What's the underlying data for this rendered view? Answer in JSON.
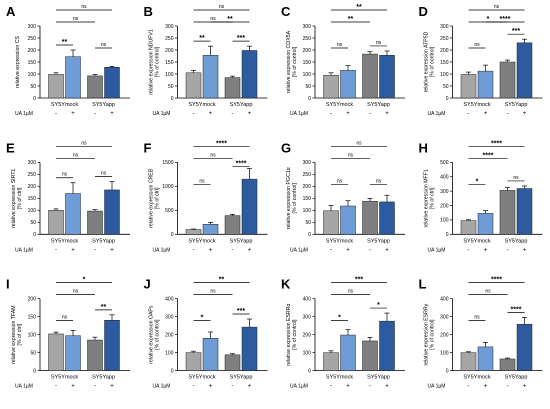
{
  "colors": {
    "mock": "#a6a6a6",
    "mock_ua": "#6f9bd6",
    "app": "#7f7f7f",
    "app_ua": "#2e5b9f",
    "axis": "#000000"
  },
  "shared": {
    "groups": [
      "SY5Ymock",
      "SY5Yapp"
    ],
    "ua_label": "UA 1µM",
    "ua_signs": [
      "-",
      "+",
      "-",
      "+"
    ]
  },
  "chart_data": [
    {
      "type": "bar",
      "letter": "A",
      "ylabel": "relative expression CS",
      "ylabel2": "",
      "ylim": [
        0,
        300
      ],
      "yticks": [
        0,
        50,
        100,
        150,
        200,
        250,
        300
      ],
      "ytick_labels": [
        "0",
        "50",
        "100",
        "150",
        "200",
        "250",
        "300"
      ],
      "series": [
        {
          "name": "",
          "values": [
            98,
            172,
            92,
            128
          ],
          "errors": [
            7,
            28,
            6,
            4
          ]
        }
      ],
      "sig": [
        {
          "a": 0,
          "b": 1,
          "label": "**"
        },
        {
          "a": 2,
          "b": 3,
          "label": "ns"
        },
        {
          "a": 0,
          "b": 2,
          "label": "ns"
        },
        {
          "a": 0,
          "b": 3,
          "label": "ns"
        }
      ]
    },
    {
      "type": "bar",
      "letter": "B",
      "ylabel": "relative expression NDUFV1",
      "ylabel2": "[% of control]",
      "ylim": [
        0,
        300
      ],
      "yticks": [
        0,
        50,
        100,
        150,
        200,
        250,
        300
      ],
      "ytick_labels": [
        "0",
        "50",
        "100",
        "150",
        "200",
        "250",
        "300"
      ],
      "series": [
        {
          "name": "",
          "values": [
            105,
            178,
            85,
            198
          ],
          "errors": [
            10,
            38,
            6,
            18
          ]
        }
      ],
      "sig": [
        {
          "a": 0,
          "b": 1,
          "label": "**"
        },
        {
          "a": 2,
          "b": 3,
          "label": "***"
        },
        {
          "a": 0,
          "b": 2,
          "label": "ns"
        },
        {
          "a": 0,
          "b": 3,
          "label": "ns"
        },
        {
          "a": 1,
          "b": 3,
          "label": "**"
        }
      ]
    },
    {
      "type": "bar",
      "letter": "C",
      "ylabel": "relative expression COX5A",
      "ylabel2": "[% of control]",
      "ylim": [
        0,
        300
      ],
      "yticks": [
        0,
        50,
        100,
        150,
        200,
        250,
        300
      ],
      "ytick_labels": [
        "0",
        "50",
        "100",
        "150",
        "200",
        "250",
        "300"
      ],
      "series": [
        {
          "name": "",
          "values": [
            95,
            115,
            183,
            178
          ],
          "errors": [
            10,
            20,
            10,
            18
          ]
        }
      ],
      "sig": [
        {
          "a": 0,
          "b": 1,
          "label": "ns"
        },
        {
          "a": 2,
          "b": 3,
          "label": "ns"
        },
        {
          "a": 0,
          "b": 2,
          "label": "**"
        },
        {
          "a": 0,
          "b": 3,
          "label": "**"
        }
      ]
    },
    {
      "type": "bar",
      "letter": "D",
      "ylabel": "relative expression ATP5D",
      "ylabel2": "[% of control]",
      "ylim": [
        0,
        300
      ],
      "yticks": [
        0,
        50,
        100,
        150,
        200,
        250,
        300
      ],
      "ytick_labels": [
        "0",
        "50",
        "100",
        "150",
        "200",
        "250",
        "300"
      ],
      "series": [
        {
          "name": "",
          "values": [
            98,
            112,
            150,
            230
          ],
          "errors": [
            10,
            25,
            8,
            15
          ]
        }
      ],
      "sig": [
        {
          "a": 0,
          "b": 1,
          "label": "ns"
        },
        {
          "a": 2,
          "b": 3,
          "label": "***"
        },
        {
          "a": 0,
          "b": 2,
          "label": "*"
        },
        {
          "a": 0,
          "b": 3,
          "label": "ns"
        },
        {
          "a": 1,
          "b": 3,
          "label": "****"
        }
      ]
    },
    {
      "type": "bar",
      "letter": "E",
      "ylabel": "relative expression SIRT1",
      "ylabel2": "[% of ctrl]",
      "ylim": [
        0,
        300
      ],
      "yticks": [
        0,
        50,
        100,
        150,
        200,
        250,
        300
      ],
      "ytick_labels": [
        "0",
        "50",
        "100",
        "150",
        "200",
        "250",
        "300"
      ],
      "series": [
        {
          "name": "",
          "values": [
            100,
            170,
            97,
            185
          ],
          "errors": [
            6,
            45,
            6,
            35
          ]
        }
      ],
      "sig": [
        {
          "a": 0,
          "b": 1,
          "label": "ns"
        },
        {
          "a": 2,
          "b": 3,
          "label": "ns"
        },
        {
          "a": 0,
          "b": 2,
          "label": "ns"
        },
        {
          "a": 0,
          "b": 3,
          "label": "ns"
        }
      ]
    },
    {
      "type": "bar",
      "letter": "F",
      "ylabel": "relative expression CREB",
      "ylabel2": "[% of ctrl]",
      "ylim": [
        0,
        1500
      ],
      "yticks": [
        0,
        500,
        1000,
        1500
      ],
      "ytick_labels": [
        "0",
        "500",
        "1000",
        "1500"
      ],
      "series": [
        {
          "name": "",
          "values": [
            100,
            210,
            390,
            1150
          ],
          "errors": [
            10,
            40,
            25,
            220
          ]
        }
      ],
      "sig": [
        {
          "a": 0,
          "b": 1,
          "label": "ns"
        },
        {
          "a": 2,
          "b": 3,
          "label": "****"
        },
        {
          "a": 0,
          "b": 2,
          "label": "ns"
        },
        {
          "a": 0,
          "b": 3,
          "label": "****"
        }
      ]
    },
    {
      "type": "bar",
      "letter": "G",
      "ylabel": "relative expression PGC1α",
      "ylabel2": "[% of control]",
      "ylim": [
        0,
        300
      ],
      "yticks": [
        0,
        50,
        100,
        150,
        200,
        250,
        300
      ],
      "ytick_labels": [
        "0",
        "50",
        "100",
        "150",
        "200",
        "250",
        "300"
      ],
      "series": [
        {
          "name": "",
          "values": [
            98,
            118,
            138,
            135
          ],
          "errors": [
            22,
            22,
            12,
            28
          ]
        }
      ],
      "sig": [
        {
          "a": 0,
          "b": 1,
          "label": "ns"
        },
        {
          "a": 2,
          "b": 3,
          "label": "ns"
        },
        {
          "a": 0,
          "b": 2,
          "label": "ns"
        },
        {
          "a": 0,
          "b": 3,
          "label": "ns"
        }
      ]
    },
    {
      "type": "bar",
      "letter": "H",
      "ylabel": "relative expression MFF1",
      "ylabel2": "[% of ctrl]",
      "ylim": [
        0,
        500
      ],
      "yticks": [
        0,
        100,
        200,
        300,
        400,
        500
      ],
      "ytick_labels": [
        "0",
        "100",
        "200",
        "300",
        "400",
        "500"
      ],
      "series": [
        {
          "name": "",
          "values": [
            95,
            145,
            305,
            318
          ],
          "errors": [
            6,
            20,
            20,
            18
          ]
        }
      ],
      "sig": [
        {
          "a": 0,
          "b": 1,
          "label": "*"
        },
        {
          "a": 2,
          "b": 3,
          "label": "ns"
        },
        {
          "a": 0,
          "b": 2,
          "label": "****"
        },
        {
          "a": 0,
          "b": 3,
          "label": "****"
        }
      ]
    },
    {
      "type": "bar",
      "letter": "I",
      "ylabel": "relative expression TFAM",
      "ylabel2": "[% of ctrl]",
      "ylim": [
        0,
        200
      ],
      "yticks": [
        0,
        50,
        100,
        150,
        200
      ],
      "ytick_labels": [
        "0",
        "50",
        "100",
        "150",
        "200"
      ],
      "series": [
        {
          "name": "",
          "values": [
            102,
            97,
            85,
            140
          ],
          "errors": [
            5,
            15,
            8,
            15
          ]
        }
      ],
      "sig": [
        {
          "a": 0,
          "b": 1,
          "label": "ns"
        },
        {
          "a": 2,
          "b": 3,
          "label": "**"
        },
        {
          "a": 0,
          "b": 2,
          "label": "ns"
        },
        {
          "a": 0,
          "b": 3,
          "label": "*"
        }
      ]
    },
    {
      "type": "bar",
      "letter": "J",
      "ylabel": "relative expression OAPs",
      "ylabel2": "[% of control]",
      "ylim": [
        0,
        400
      ],
      "yticks": [
        0,
        100,
        200,
        300,
        400
      ],
      "ytick_labels": [
        "0",
        "100",
        "200",
        "300",
        "400"
      ],
      "series": [
        {
          "name": "",
          "values": [
            100,
            180,
            88,
            242
          ],
          "errors": [
            8,
            35,
            6,
            45
          ]
        }
      ],
      "sig": [
        {
          "a": 0,
          "b": 1,
          "label": "*"
        },
        {
          "a": 2,
          "b": 3,
          "label": "***"
        },
        {
          "a": 0,
          "b": 2,
          "label": "ns"
        },
        {
          "a": 0,
          "b": 3,
          "label": "**"
        }
      ]
    },
    {
      "type": "bar",
      "letter": "K",
      "ylabel": "relative expression ESRRα",
      "ylabel2": "[% of control]",
      "ylim": [
        0,
        400
      ],
      "yticks": [
        0,
        100,
        200,
        300,
        400
      ],
      "ytick_labels": [
        "0",
        "100",
        "200",
        "300",
        "400"
      ],
      "series": [
        {
          "name": "",
          "values": [
            100,
            198,
            165,
            275
          ],
          "errors": [
            10,
            30,
            20,
            45
          ]
        }
      ],
      "sig": [
        {
          "a": 0,
          "b": 1,
          "label": "*"
        },
        {
          "a": 2,
          "b": 3,
          "label": "*"
        },
        {
          "a": 0,
          "b": 2,
          "label": "ns"
        },
        {
          "a": 0,
          "b": 3,
          "label": "***"
        }
      ]
    },
    {
      "type": "bar",
      "letter": "L",
      "ylabel": "relative expression ESRRγ",
      "ylabel2": "[% of control]",
      "ylim": [
        0,
        400
      ],
      "yticks": [
        0,
        100,
        200,
        300,
        400
      ],
      "ytick_labels": [
        "0",
        "100",
        "200",
        "300",
        "400"
      ],
      "series": [
        {
          "name": "",
          "values": [
            100,
            132,
            65,
            258
          ],
          "errors": [
            5,
            25,
            5,
            38
          ]
        }
      ],
      "sig": [
        {
          "a": 0,
          "b": 1,
          "label": "ns"
        },
        {
          "a": 2,
          "b": 3,
          "label": "****"
        },
        {
          "a": 0,
          "b": 2,
          "label": "ns"
        },
        {
          "a": 0,
          "b": 3,
          "label": "****"
        }
      ]
    }
  ]
}
